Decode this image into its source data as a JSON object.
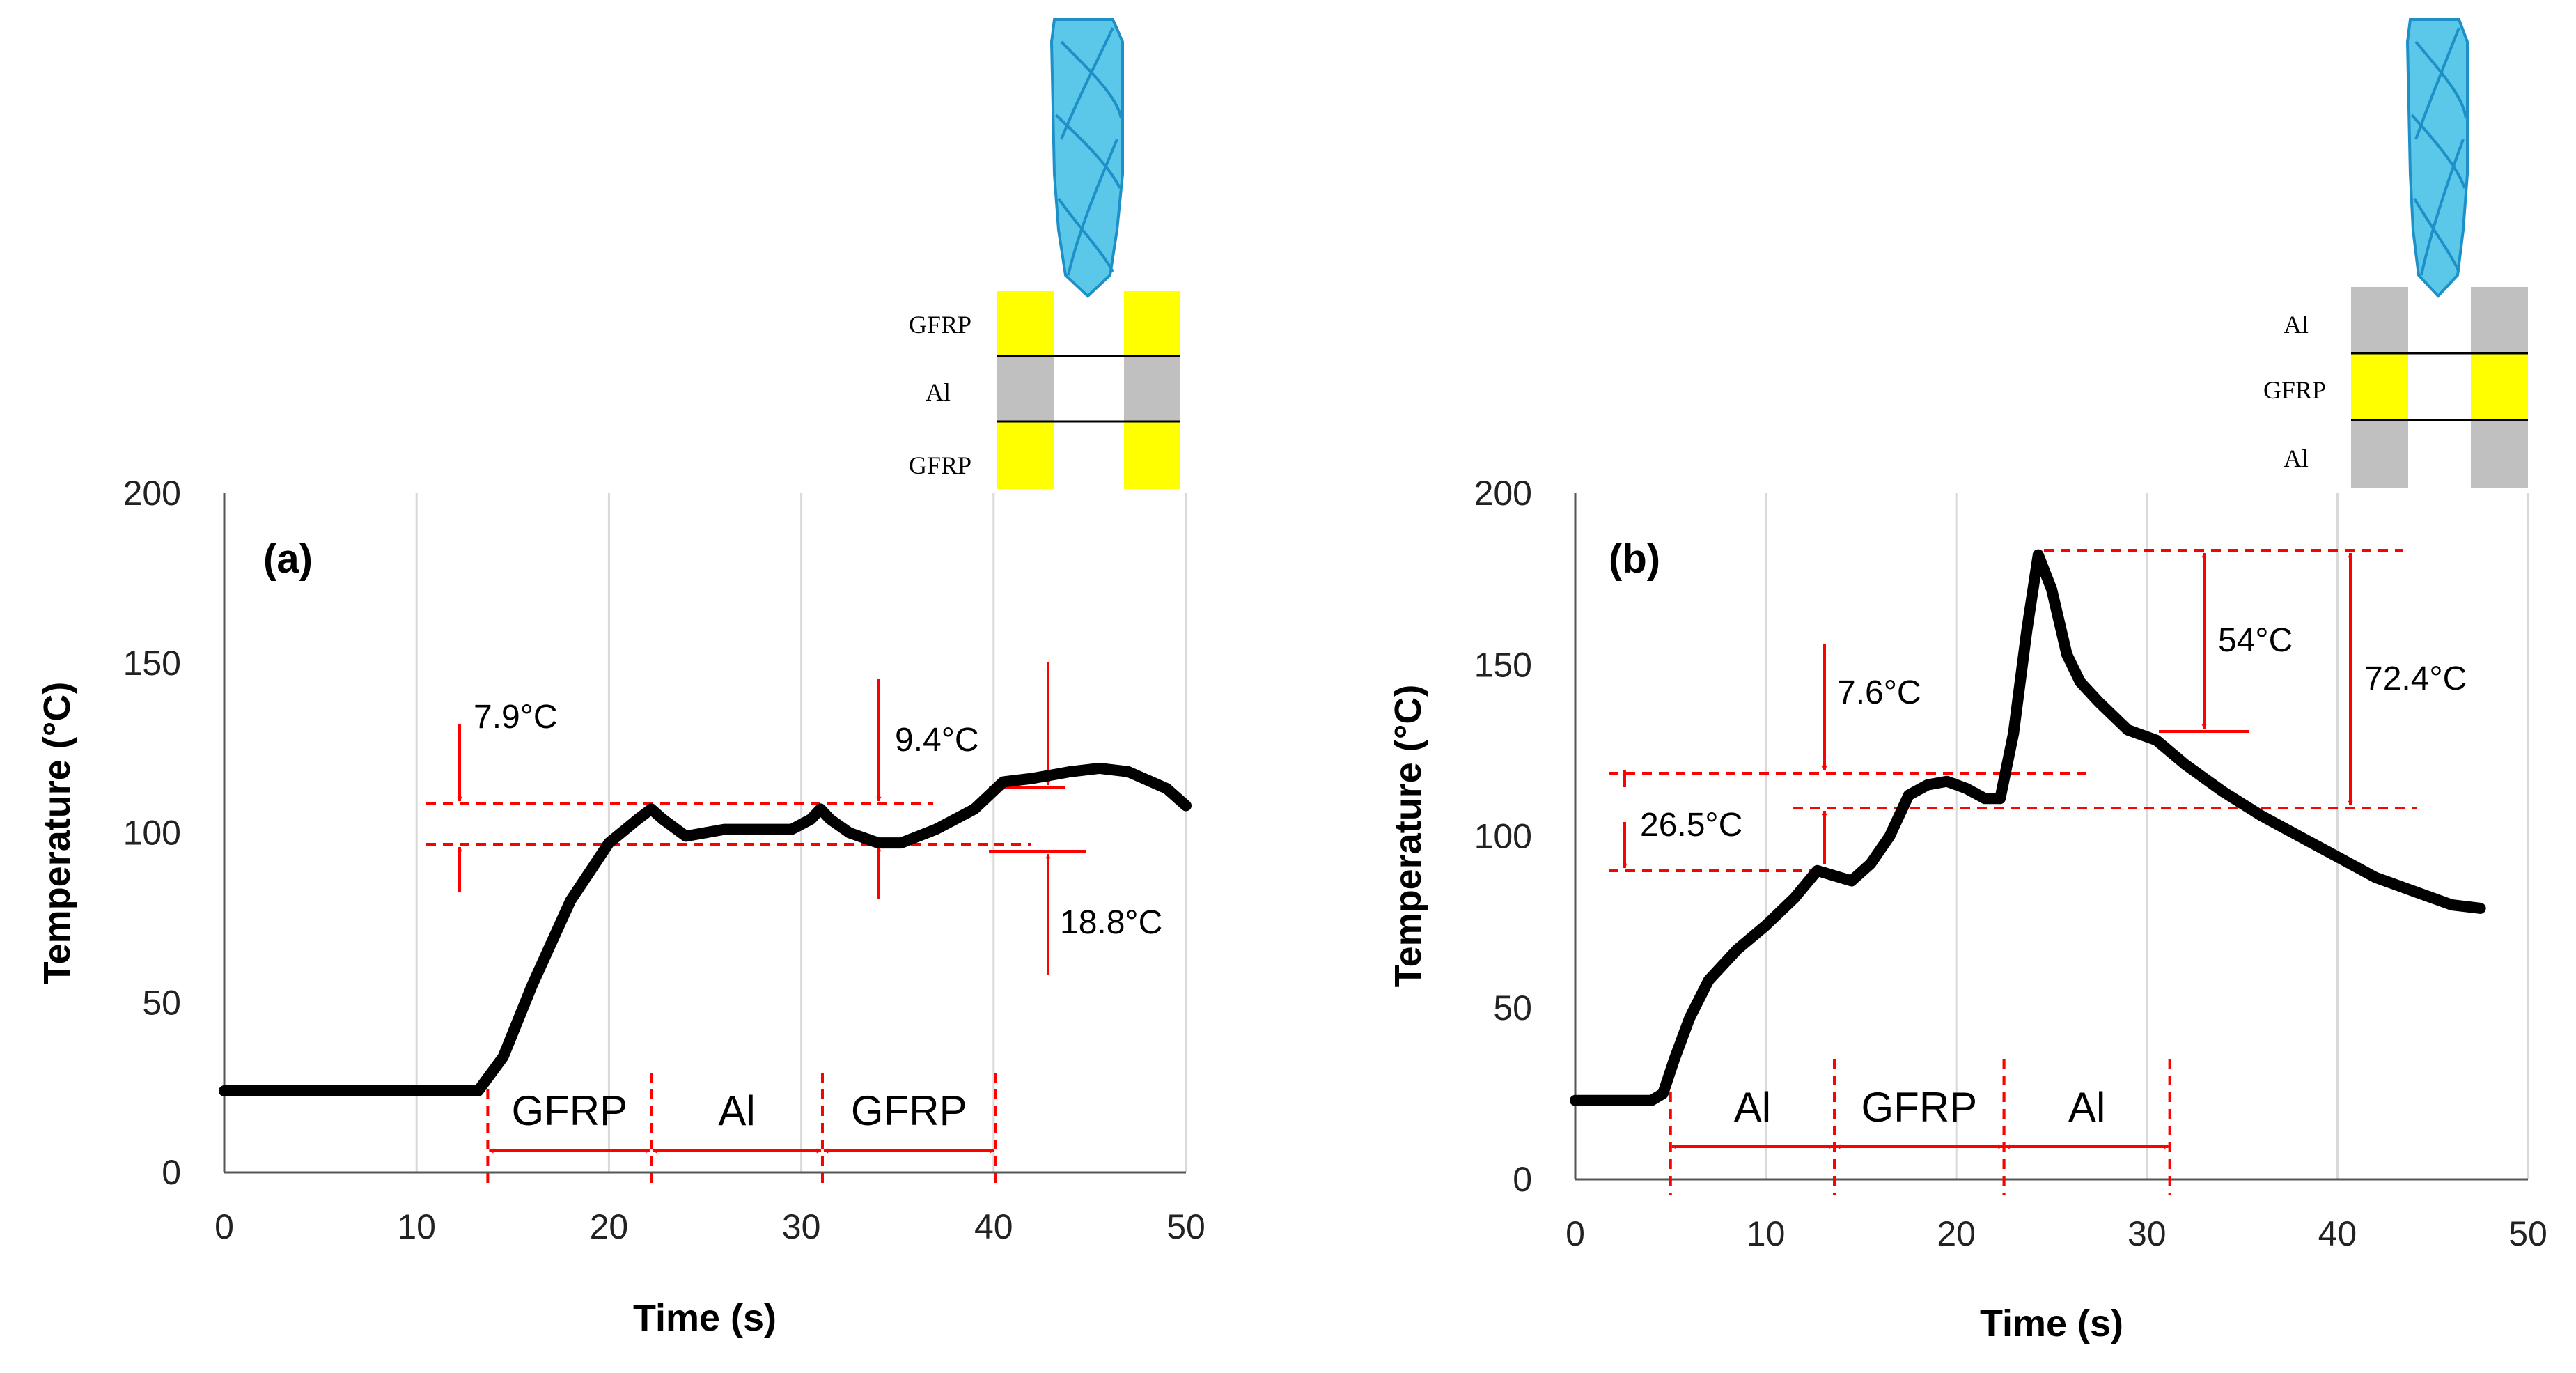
{
  "chart_data": [
    {
      "type": "line",
      "panel_label": "(a)",
      "xlabel": "Time (s)",
      "ylabel": "Temperature (°C)",
      "xlim": [
        0,
        50
      ],
      "ylim": [
        0,
        200
      ],
      "xticks": [
        0,
        10,
        20,
        30,
        40,
        50
      ],
      "yticks": [
        0,
        50,
        100,
        150,
        200
      ],
      "grid": "vertical",
      "series": [
        {
          "color": "#000000",
          "x": [
            0,
            5,
            10,
            13.2,
            14.5,
            16,
            18,
            20,
            21.5,
            22.2,
            22.8,
            24,
            26,
            28,
            29.5,
            30.5,
            31,
            31.5,
            32.5,
            34,
            35.2,
            37,
            39,
            40.5,
            42,
            44,
            45.5,
            47,
            49,
            50
          ],
          "y": [
            24,
            24,
            24,
            24,
            34,
            55,
            80,
            97,
            104,
            107,
            104,
            99,
            101,
            101,
            101,
            104,
            107,
            104,
            100,
            97,
            97,
            101,
            107,
            115,
            116,
            118,
            119,
            118,
            113,
            108
          ]
        }
      ],
      "annotations": [
        {
          "text": "7.9°C",
          "between": [
            96,
            108
          ]
        },
        {
          "text": "9.4°C",
          "between": [
            96,
            106
          ]
        },
        {
          "text": "18.8°C",
          "between": [
            96,
            114
          ]
        }
      ],
      "segments": [
        {
          "label": "GFRP",
          "x": [
            13.7,
            22.2
          ]
        },
        {
          "label": "Al",
          "x": [
            22.2,
            31.1
          ]
        },
        {
          "label": "GFRP",
          "x": [
            31.1,
            40.1
          ]
        }
      ],
      "stack_layers": [
        "GFRP",
        "Al",
        "GFRP"
      ]
    },
    {
      "type": "line",
      "panel_label": "(b)",
      "xlabel": "Time (s)",
      "ylabel": "Temperature (°C)",
      "xlim": [
        0,
        50
      ],
      "ylim": [
        0,
        200
      ],
      "xticks": [
        0,
        10,
        20,
        30,
        40,
        50
      ],
      "yticks": [
        0,
        50,
        100,
        150,
        200
      ],
      "grid": "vertical",
      "series": [
        {
          "color": "#000000",
          "x": [
            0,
            2,
            4,
            4.6,
            5.2,
            6,
            7,
            8.5,
            10,
            11.5,
            12.7,
            13.3,
            14.5,
            15.5,
            16.5,
            17.5,
            18.5,
            19.5,
            20.5,
            21.5,
            22.3,
            23,
            23.7,
            24.3,
            25,
            25.8,
            26.5,
            27.5,
            29,
            30.5,
            32,
            34,
            36,
            38,
            40,
            42,
            44,
            46,
            47.5
          ],
          "y": [
            23,
            23,
            23,
            25,
            35,
            47,
            58,
            67,
            74,
            82,
            90,
            89,
            87,
            92,
            100,
            112,
            115,
            116,
            114,
            111,
            111,
            130,
            160,
            182,
            172,
            153,
            145,
            139,
            131,
            128,
            121,
            113,
            106,
            100,
            94,
            88,
            84,
            80,
            79
          ]
        }
      ],
      "annotations": [
        {
          "text": "7.6°C",
          "between": [
            108,
            118
          ]
        },
        {
          "text": "26.5°C",
          "between": [
            89,
            118
          ]
        },
        {
          "text": "54°C",
          "between": [
            130,
            182
          ]
        },
        {
          "text": "72.4°C",
          "between": [
            108,
            182
          ]
        }
      ],
      "segments": [
        {
          "label": "Al",
          "x": [
            5,
            13.6
          ]
        },
        {
          "label": "GFRP",
          "x": [
            13.6,
            22.5
          ]
        },
        {
          "label": "Al",
          "x": [
            22.5,
            31.2
          ]
        }
      ],
      "stack_layers": [
        "Al",
        "GFRP",
        "Al"
      ]
    }
  ],
  "colors": {
    "curve": "#000000",
    "annotation": "#ff0000",
    "grid": "#d9d9d9",
    "gfrp": "#ffff00",
    "al": "#c0c0c0",
    "drill": "#5bc8ea"
  }
}
